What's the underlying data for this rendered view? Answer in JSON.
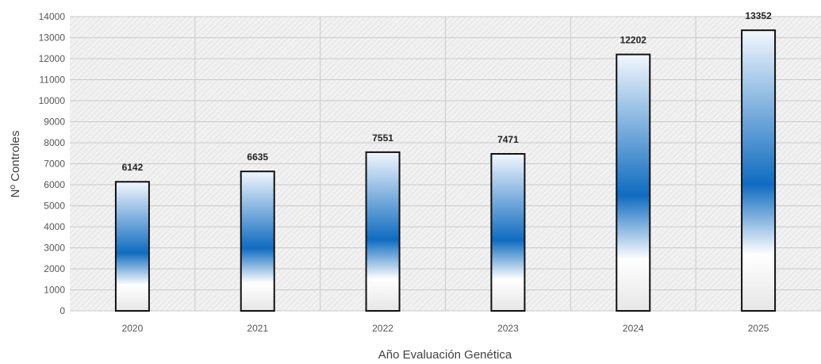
{
  "chart_data": {
    "type": "bar",
    "title": "",
    "xlabel": "Año Evaluación Genética",
    "ylabel": "Nº Controles",
    "categories": [
      "2020",
      "2021",
      "2022",
      "2023",
      "2024",
      "2025"
    ],
    "values": [
      6142,
      6635,
      7551,
      7471,
      12202,
      13352
    ],
    "data_labels": [
      "6142",
      "6635",
      "7551",
      "7471",
      "12202",
      "13352"
    ],
    "ylim": [
      0,
      14000
    ],
    "yticks": [
      "0",
      "1000",
      "2000",
      "3000",
      "4000",
      "5000",
      "6000",
      "7000",
      "8000",
      "9000",
      "10000",
      "11000",
      "12000",
      "13000",
      "14000"
    ],
    "grid": true,
    "legend": "none",
    "colors": {
      "bar_top": "#f2f7fd",
      "bar_mid": "#0f6cc0",
      "bar_low": "#ffffff",
      "bar_bottom": "#e6e6e6",
      "bar_outline": "#111111",
      "plot_background": "#f2f2f2",
      "hatch": "#dcdcdc",
      "grid": "#c9c9c9"
    }
  }
}
